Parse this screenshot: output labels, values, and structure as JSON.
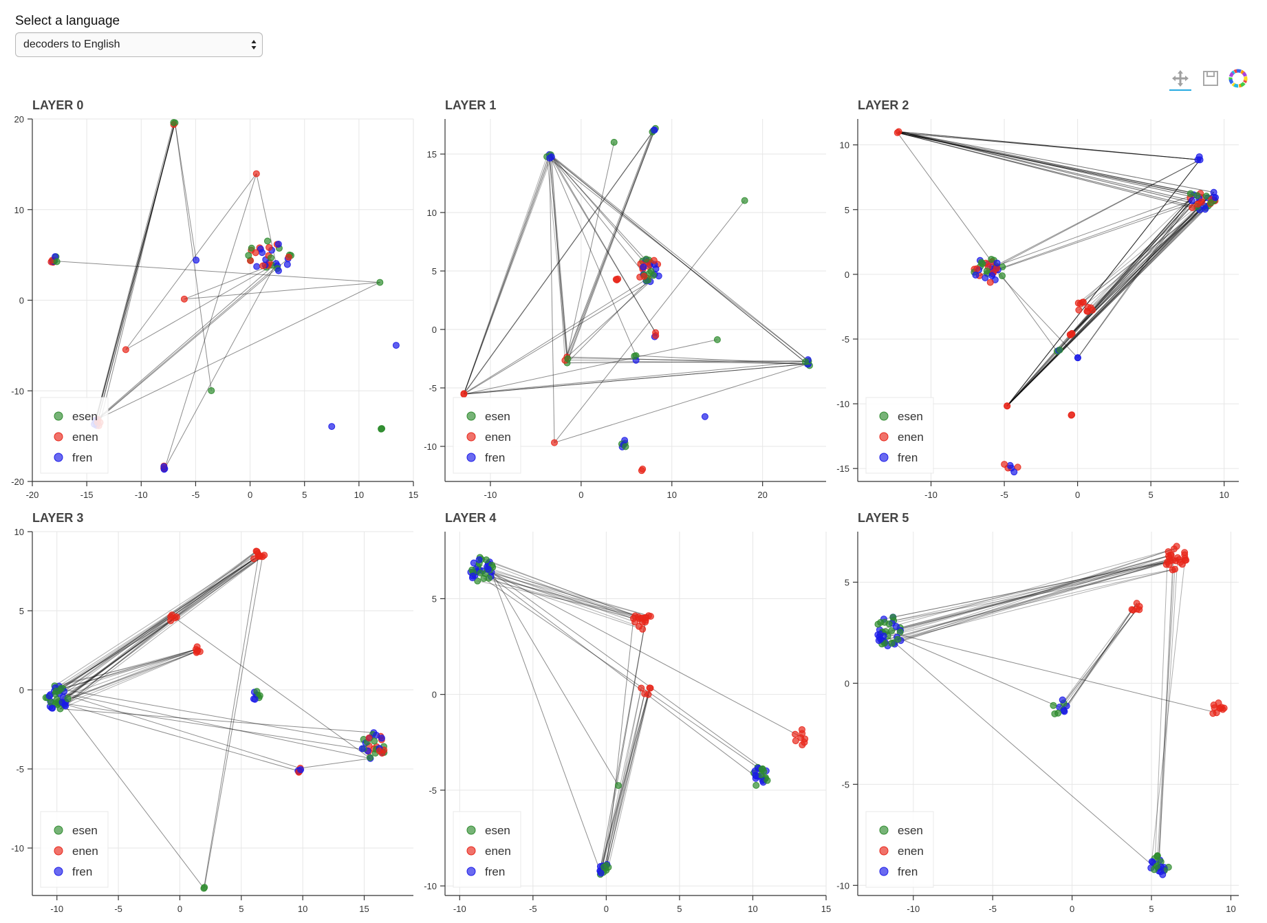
{
  "selector": {
    "label": "Select a language",
    "value": "decoders to English"
  },
  "toolbar": {
    "tools": [
      "pan-tool",
      "save-tool",
      "bokeh-logo"
    ]
  },
  "colors": {
    "esen": "#2e8b2e",
    "enen": "#e8261a",
    "fren": "#1a1ae8"
  },
  "chart_data": [
    {
      "type": "scatter",
      "title": "LAYER 0",
      "xlim": [
        -20,
        15
      ],
      "ylim": [
        -20,
        20
      ],
      "xticks": [
        -20,
        -15,
        -10,
        -5,
        0,
        5,
        10,
        15
      ],
      "yticks": [
        -20,
        -10,
        0,
        10,
        20
      ],
      "legend": [
        "esen",
        "enen",
        "fren"
      ],
      "clusters": [
        {
          "x": -18,
          "y": 4.5,
          "r": 0.4,
          "n": 10,
          "colors": [
            "esen",
            "enen",
            "fren"
          ]
        },
        {
          "x": -7,
          "y": 19.5,
          "r": 0.2,
          "n": 3,
          "colors": [
            "esen",
            "enen"
          ]
        },
        {
          "x": 0.5,
          "y": 14,
          "r": 0.1,
          "n": 1,
          "colors": [
            "enen"
          ]
        },
        {
          "x": -4.9,
          "y": 4.4,
          "r": 0.1,
          "n": 1,
          "colors": [
            "fren"
          ]
        },
        {
          "x": 2,
          "y": 4.8,
          "r": 2.2,
          "n": 34,
          "colors": [
            "fren",
            "esen",
            "enen"
          ]
        },
        {
          "x": -6,
          "y": 0.2,
          "r": 0.1,
          "n": 1,
          "colors": [
            "enen"
          ]
        },
        {
          "x": 12,
          "y": 2,
          "r": 0.1,
          "n": 1,
          "colors": [
            "esen"
          ]
        },
        {
          "x": -11.5,
          "y": -5.5,
          "r": 0.1,
          "n": 1,
          "colors": [
            "enen"
          ]
        },
        {
          "x": -3.6,
          "y": -10,
          "r": 0.1,
          "n": 1,
          "colors": [
            "esen"
          ]
        },
        {
          "x": 13.5,
          "y": -5,
          "r": 0.1,
          "n": 1,
          "colors": [
            "fren"
          ]
        },
        {
          "x": -14,
          "y": -13.5,
          "r": 0.4,
          "n": 8,
          "colors": [
            "fren",
            "enen"
          ]
        },
        {
          "x": 7.5,
          "y": -14,
          "r": 0.1,
          "n": 1,
          "colors": [
            "fren"
          ]
        },
        {
          "x": 12.2,
          "y": -14,
          "r": 0.3,
          "n": 3,
          "colors": [
            "esen"
          ]
        },
        {
          "x": -7.8,
          "y": -18.5,
          "r": 0.3,
          "n": 5,
          "colors": [
            "fren",
            "enen"
          ]
        }
      ],
      "links": [
        [
          0,
          6,
          1
        ],
        [
          1,
          10,
          4
        ],
        [
          1,
          3,
          1
        ],
        [
          1,
          8,
          1
        ],
        [
          2,
          7,
          1
        ],
        [
          2,
          4,
          1
        ],
        [
          5,
          6,
          1
        ],
        [
          10,
          4,
          3
        ],
        [
          10,
          1,
          3
        ],
        [
          13,
          4,
          1
        ],
        [
          13,
          2,
          1
        ],
        [
          10,
          6,
          1
        ],
        [
          7,
          4,
          1
        ],
        [
          5,
          4,
          1
        ]
      ]
    },
    {
      "type": "scatter",
      "title": "LAYER 1",
      "xlim": [
        -15,
        27
      ],
      "ylim": [
        -13,
        18
      ],
      "xticks": [
        -10,
        0,
        10,
        20
      ],
      "yticks": [
        -10,
        -5,
        0,
        5,
        10,
        15
      ],
      "legend": [
        "esen",
        "enen",
        "fren"
      ],
      "clusters": [
        {
          "x": -3.5,
          "y": 14.8,
          "r": 0.3,
          "n": 5,
          "colors": [
            "fren",
            "esen"
          ]
        },
        {
          "x": 3.7,
          "y": 16,
          "r": 0.1,
          "n": 1,
          "colors": [
            "esen"
          ]
        },
        {
          "x": 8,
          "y": 17,
          "r": 0.3,
          "n": 4,
          "colors": [
            "esen",
            "fren"
          ]
        },
        {
          "x": 18,
          "y": 11,
          "r": 0.1,
          "n": 1,
          "colors": [
            "esen"
          ]
        },
        {
          "x": 7.5,
          "y": 5,
          "r": 1.2,
          "n": 30,
          "colors": [
            "fren",
            "enen",
            "esen"
          ]
        },
        {
          "x": 4,
          "y": 4.5,
          "r": 0.3,
          "n": 3,
          "colors": [
            "enen"
          ]
        },
        {
          "x": 8.3,
          "y": -0.5,
          "r": 0.3,
          "n": 3,
          "colors": [
            "enen",
            "fren"
          ]
        },
        {
          "x": -13,
          "y": -5.5,
          "r": 0.1,
          "n": 2,
          "colors": [
            "enen"
          ]
        },
        {
          "x": -1.5,
          "y": -2.6,
          "r": 0.3,
          "n": 4,
          "colors": [
            "enen",
            "esen"
          ]
        },
        {
          "x": 6,
          "y": -2.5,
          "r": 0.3,
          "n": 3,
          "colors": [
            "esen",
            "fren"
          ]
        },
        {
          "x": 15,
          "y": -0.8,
          "r": 0.1,
          "n": 1,
          "colors": [
            "esen"
          ]
        },
        {
          "x": 25,
          "y": -2.8,
          "r": 0.4,
          "n": 6,
          "colors": [
            "fren",
            "esen"
          ]
        },
        {
          "x": -3,
          "y": -9.7,
          "r": 0.1,
          "n": 1,
          "colors": [
            "enen"
          ]
        },
        {
          "x": 4.8,
          "y": -9.8,
          "r": 0.4,
          "n": 6,
          "colors": [
            "fren",
            "esen"
          ]
        },
        {
          "x": 13.7,
          "y": -7.4,
          "r": 0.1,
          "n": 1,
          "colors": [
            "fren"
          ]
        },
        {
          "x": 6.8,
          "y": -12,
          "r": 0.2,
          "n": 2,
          "colors": [
            "enen"
          ]
        }
      ],
      "links": [
        [
          0,
          7,
          6
        ],
        [
          0,
          8,
          6
        ],
        [
          0,
          11,
          4
        ],
        [
          0,
          4,
          3
        ],
        [
          2,
          8,
          4
        ],
        [
          2,
          7,
          2
        ],
        [
          1,
          8,
          1
        ],
        [
          3,
          12,
          1
        ],
        [
          8,
          11,
          6
        ],
        [
          7,
          11,
          3
        ],
        [
          7,
          4,
          2
        ],
        [
          12,
          0,
          1
        ],
        [
          12,
          11,
          1
        ],
        [
          8,
          4,
          2
        ],
        [
          0,
          6,
          2
        ],
        [
          10,
          7,
          1
        ],
        [
          9,
          11,
          1
        ],
        [
          0,
          9,
          1
        ]
      ]
    },
    {
      "type": "scatter",
      "title": "LAYER 2",
      "xlim": [
        -15,
        11
      ],
      "ylim": [
        -16,
        12
      ],
      "xticks": [
        -10,
        -5,
        0,
        5,
        10
      ],
      "yticks": [
        -15,
        -10,
        -5,
        0,
        5,
        10
      ],
      "legend": [
        "esen",
        "enen",
        "fren"
      ],
      "clusters": [
        {
          "x": -12.3,
          "y": 11,
          "r": 0.1,
          "n": 2,
          "colors": [
            "enen"
          ]
        },
        {
          "x": 8.3,
          "y": 9,
          "r": 0.2,
          "n": 3,
          "colors": [
            "fren"
          ]
        },
        {
          "x": 8.5,
          "y": 5.8,
          "r": 1.0,
          "n": 30,
          "colors": [
            "fren",
            "esen",
            "enen"
          ]
        },
        {
          "x": -6,
          "y": 0.3,
          "r": 1.1,
          "n": 34,
          "colors": [
            "fren",
            "enen",
            "esen"
          ]
        },
        {
          "x": 0.5,
          "y": -2.5,
          "r": 0.6,
          "n": 10,
          "colors": [
            "enen"
          ]
        },
        {
          "x": -0.5,
          "y": -4.7,
          "r": 0.2,
          "n": 4,
          "colors": [
            "enen"
          ]
        },
        {
          "x": -1.4,
          "y": -5.8,
          "r": 0.3,
          "n": 3,
          "colors": [
            "esen",
            "fren"
          ]
        },
        {
          "x": 0,
          "y": -6.5,
          "r": 0.1,
          "n": 2,
          "colors": [
            "fren"
          ]
        },
        {
          "x": -4.8,
          "y": -10.1,
          "r": 0.1,
          "n": 2,
          "colors": [
            "enen"
          ]
        },
        {
          "x": -0.4,
          "y": -10.8,
          "r": 0.1,
          "n": 2,
          "colors": [
            "enen"
          ]
        },
        {
          "x": -4.5,
          "y": -14.8,
          "r": 0.6,
          "n": 6,
          "colors": [
            "fren",
            "enen"
          ]
        }
      ],
      "links": [
        [
          0,
          2,
          20
        ],
        [
          0,
          1,
          4
        ],
        [
          0,
          6,
          1
        ],
        [
          8,
          2,
          20
        ],
        [
          8,
          1,
          3
        ],
        [
          4,
          2,
          10
        ],
        [
          5,
          2,
          8
        ],
        [
          3,
          2,
          3
        ],
        [
          3,
          1,
          2
        ],
        [
          7,
          2,
          2
        ],
        [
          6,
          2,
          2
        ],
        [
          3,
          7,
          1
        ]
      ]
    },
    {
      "type": "scatter",
      "title": "LAYER 3",
      "xlim": [
        -12,
        19
      ],
      "ylim": [
        -13,
        10
      ],
      "xticks": [
        -10,
        -5,
        0,
        5,
        10,
        15
      ],
      "yticks": [
        -10,
        -5,
        0,
        5,
        10
      ],
      "legend": [
        "esen",
        "enen",
        "fren"
      ],
      "clusters": [
        {
          "x": 6.5,
          "y": 8.5,
          "r": 0.6,
          "n": 10,
          "colors": [
            "enen"
          ]
        },
        {
          "x": -0.5,
          "y": 4.5,
          "r": 0.3,
          "n": 5,
          "colors": [
            "enen"
          ]
        },
        {
          "x": 1.5,
          "y": 2.5,
          "r": 0.3,
          "n": 6,
          "colors": [
            "enen"
          ]
        },
        {
          "x": -10,
          "y": -0.5,
          "r": 0.9,
          "n": 34,
          "colors": [
            "fren",
            "esen"
          ]
        },
        {
          "x": 6.2,
          "y": -0.3,
          "r": 0.4,
          "n": 8,
          "colors": [
            "fren",
            "esen"
          ]
        },
        {
          "x": 15.8,
          "y": -3.5,
          "r": 1.0,
          "n": 30,
          "colors": [
            "fren",
            "enen",
            "esen"
          ]
        },
        {
          "x": 9.7,
          "y": -5,
          "r": 0.3,
          "n": 6,
          "colors": [
            "enen",
            "fren"
          ]
        },
        {
          "x": 2,
          "y": -12.5,
          "r": 0.1,
          "n": 2,
          "colors": [
            "esen"
          ]
        }
      ],
      "links": [
        [
          3,
          0,
          20
        ],
        [
          3,
          2,
          12
        ],
        [
          3,
          1,
          4
        ],
        [
          3,
          5,
          4
        ],
        [
          3,
          6,
          2
        ],
        [
          3,
          7,
          1
        ],
        [
          0,
          7,
          2
        ],
        [
          1,
          5,
          1
        ],
        [
          5,
          6,
          1
        ]
      ]
    },
    {
      "type": "scatter",
      "title": "LAYER 4",
      "xlim": [
        -11,
        15
      ],
      "ylim": [
        -10.5,
        8.5
      ],
      "xticks": [
        -10,
        -5,
        0,
        5,
        10,
        15
      ],
      "yticks": [
        -10,
        -5,
        0,
        5
      ],
      "legend": [
        "esen",
        "enen",
        "fren"
      ],
      "clusters": [
        {
          "x": -8.5,
          "y": 6.5,
          "r": 0.8,
          "n": 34,
          "colors": [
            "fren",
            "esen"
          ]
        },
        {
          "x": 2.5,
          "y": 4,
          "r": 0.7,
          "n": 16,
          "colors": [
            "enen"
          ]
        },
        {
          "x": 2.7,
          "y": 0.2,
          "r": 0.4,
          "n": 5,
          "colors": [
            "enen"
          ]
        },
        {
          "x": 0.8,
          "y": -4.8,
          "r": 0.1,
          "n": 1,
          "colors": [
            "esen"
          ]
        },
        {
          "x": 10.5,
          "y": -4.3,
          "r": 0.6,
          "n": 22,
          "colors": [
            "fren",
            "esen"
          ]
        },
        {
          "x": 13.3,
          "y": -2.2,
          "r": 0.5,
          "n": 8,
          "colors": [
            "enen"
          ]
        },
        {
          "x": -0.2,
          "y": -9.1,
          "r": 0.4,
          "n": 14,
          "colors": [
            "fren",
            "esen"
          ]
        }
      ],
      "links": [
        [
          0,
          1,
          15
        ],
        [
          0,
          4,
          3
        ],
        [
          0,
          6,
          1
        ],
        [
          0,
          5,
          1
        ],
        [
          6,
          2,
          12
        ],
        [
          6,
          1,
          3
        ],
        [
          0,
          3,
          1
        ]
      ]
    },
    {
      "type": "scatter",
      "title": "LAYER 5",
      "xlim": [
        -13.5,
        10.5
      ],
      "ylim": [
        -10.5,
        7.5
      ],
      "xticks": [
        -10,
        -5,
        0,
        5,
        10
      ],
      "yticks": [
        -10,
        -5,
        0,
        5
      ],
      "legend": [
        "esen",
        "enen",
        "fren"
      ],
      "clusters": [
        {
          "x": 6.5,
          "y": 6.2,
          "r": 0.7,
          "n": 24,
          "colors": [
            "enen"
          ]
        },
        {
          "x": 4,
          "y": 3.7,
          "r": 0.3,
          "n": 6,
          "colors": [
            "enen"
          ]
        },
        {
          "x": -11.5,
          "y": 2.5,
          "r": 0.9,
          "n": 36,
          "colors": [
            "fren",
            "esen"
          ]
        },
        {
          "x": -0.8,
          "y": -1.2,
          "r": 0.5,
          "n": 10,
          "colors": [
            "fren",
            "esen"
          ]
        },
        {
          "x": 9.2,
          "y": -1.3,
          "r": 0.4,
          "n": 10,
          "colors": [
            "enen"
          ]
        },
        {
          "x": 5.5,
          "y": -9,
          "r": 0.6,
          "n": 22,
          "colors": [
            "fren",
            "esen"
          ]
        }
      ],
      "links": [
        [
          2,
          0,
          22
        ],
        [
          3,
          1,
          8
        ],
        [
          5,
          0,
          6
        ],
        [
          2,
          5,
          1
        ],
        [
          2,
          4,
          1
        ],
        [
          2,
          3,
          1
        ]
      ]
    }
  ]
}
